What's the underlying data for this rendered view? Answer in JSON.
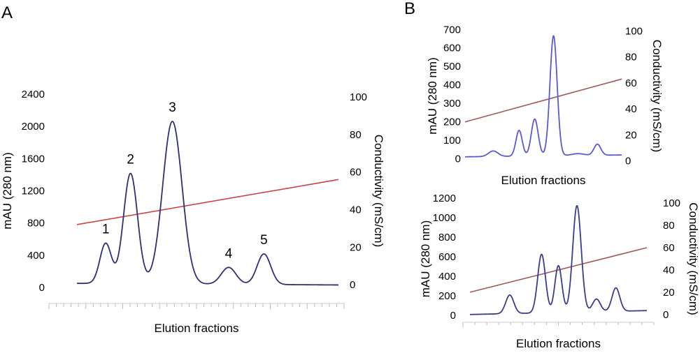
{
  "figure": {
    "panel_a_letter": "A",
    "panel_b_letter": "B"
  },
  "chart_data": [
    {
      "id": "A",
      "type": "line",
      "xlabel": "Elution fractions",
      "ylabel": "mAU (280 nm)",
      "y2label": "Conductivity (mS/cm)",
      "ylim": [
        -200,
        2600
      ],
      "yticks": [
        0,
        400,
        800,
        1200,
        1600,
        2000,
        2400
      ],
      "y2lim": [
        -10,
        110
      ],
      "y2ticks": [
        0,
        20,
        40,
        60,
        80,
        100
      ],
      "xlim": [
        0,
        100
      ],
      "x_minor_ticks": 40,
      "x_major_every": 5,
      "absorbance_color": "#2f2f7a",
      "conductivity_color": "#cc4444",
      "absorbance": {
        "baseline_start": 50,
        "baseline_end": 30,
        "tail_start": 60,
        "peaks": [
          {
            "x": 11,
            "height": 500,
            "width": 2.2
          },
          {
            "x": 20.5,
            "height": 1370,
            "width": 2.7
          },
          {
            "x": 36.5,
            "height": 2020,
            "width": 3.7
          },
          {
            "x": 58,
            "height": 210,
            "width": 2.8
          },
          {
            "x": 71.5,
            "height": 380,
            "width": 2.6
          }
        ]
      },
      "conductivity": {
        "x": [
          0,
          100
        ],
        "y": [
          32,
          56
        ]
      },
      "peak_labels": [
        {
          "text": "1",
          "x": 11,
          "y": 500
        },
        {
          "text": "2",
          "x": 20.5,
          "y": 1370
        },
        {
          "text": "3",
          "x": 36.5,
          "y": 2020
        },
        {
          "text": "4",
          "x": 58,
          "y": 210
        },
        {
          "text": "5",
          "x": 71.5,
          "y": 380
        }
      ]
    },
    {
      "id": "B-top",
      "type": "line",
      "xlabel": "Elution fractions",
      "ylabel": "mAU (280 nm)",
      "y2label": "Conductivity (mS/cm)",
      "ylim": [
        -40,
        720
      ],
      "yticks": [
        0,
        100,
        200,
        300,
        400,
        500,
        600,
        700
      ],
      "y2lim": [
        -4,
        104
      ],
      "y2ticks": [
        0,
        20,
        40,
        60,
        80,
        100
      ],
      "xlim": [
        0,
        100
      ],
      "x_minor_ticks": 0,
      "absorbance_color": "#5a5ad0",
      "conductivity_color": "#a05a5a",
      "absorbance": {
        "baseline_start": 10,
        "baseline_end": 20,
        "tail_start": 20,
        "peaks": [
          {
            "x": 18,
            "height": 30,
            "width": 3
          },
          {
            "x": 34.5,
            "height": 140,
            "width": 2
          },
          {
            "x": 44.5,
            "height": 200,
            "width": 2.2
          },
          {
            "x": 56.5,
            "height": 650,
            "width": 2.3
          },
          {
            "x": 84.5,
            "height": 60,
            "width": 2.2
          },
          {
            "x": 72,
            "height": 10,
            "width": 4
          }
        ]
      },
      "conductivity": {
        "x": [
          0,
          100
        ],
        "y": [
          30,
          63
        ]
      },
      "peak_labels": []
    },
    {
      "id": "B-bottom",
      "type": "line",
      "xlabel": "Elution fractions",
      "ylabel": "mAU (280 nm)",
      "y2label": "Conductivity (mS/cm)",
      "ylim": [
        -70,
        1230
      ],
      "yticks": [
        0,
        200,
        400,
        600,
        800,
        1000,
        1200
      ],
      "y2lim": [
        -7,
        107
      ],
      "y2ticks": [
        0,
        20,
        40,
        60,
        80,
        100
      ],
      "xlim": [
        0,
        100
      ],
      "x_minor_ticks": 16,
      "x_major_every": 100,
      "absorbance_color": "#3c3c8c",
      "conductivity_color": "#a05a5a",
      "absorbance": {
        "baseline_start": 10,
        "baseline_end": 50,
        "tail_start": 50,
        "peaks": [
          {
            "x": 22.5,
            "height": 190,
            "width": 2.3
          },
          {
            "x": 40.5,
            "height": 600,
            "width": 2.2
          },
          {
            "x": 50,
            "height": 480,
            "width": 2.0
          },
          {
            "x": 60.5,
            "height": 1090,
            "width": 2.4
          },
          {
            "x": 71.5,
            "height": 130,
            "width": 2.2
          },
          {
            "x": 82.5,
            "height": 240,
            "width": 2.2
          }
        ]
      },
      "conductivity": {
        "x": [
          0,
          100
        ],
        "y": [
          20,
          60
        ]
      },
      "peak_labels": []
    }
  ]
}
